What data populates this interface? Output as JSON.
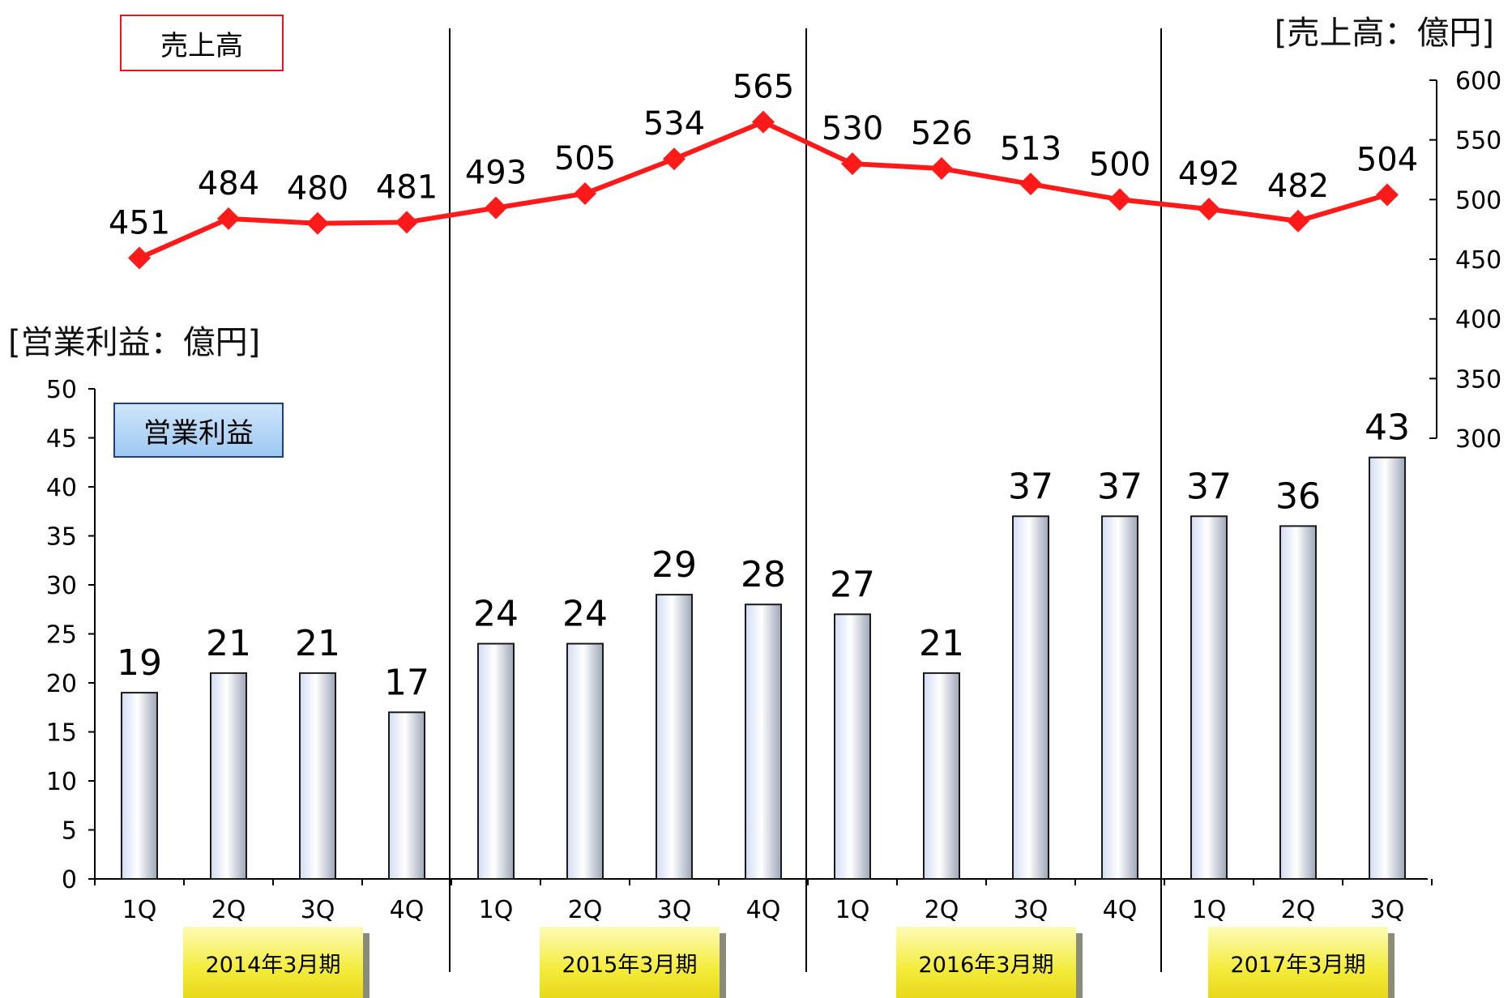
{
  "chart_data": [
    {
      "type": "line",
      "title": "",
      "legend": "売上高",
      "unit_label": "[売上高：億円]",
      "axis": "right",
      "ylim": [
        300,
        600
      ],
      "yticks": [
        300,
        350,
        400,
        450,
        500,
        550,
        600
      ],
      "categories": [
        "1Q",
        "2Q",
        "3Q",
        "4Q",
        "1Q",
        "2Q",
        "3Q",
        "4Q",
        "1Q",
        "2Q",
        "3Q",
        "4Q",
        "1Q",
        "2Q",
        "3Q"
      ],
      "values": [
        451,
        484,
        480,
        481,
        493,
        505,
        534,
        565,
        530,
        526,
        513,
        500,
        492,
        482,
        504
      ],
      "color": "#ff1a1a",
      "marker": "diamond"
    },
    {
      "type": "bar",
      "title": "",
      "legend": "営業利益",
      "unit_label": "[営業利益：億円]",
      "axis": "left",
      "ylim": [
        0,
        50
      ],
      "yticks": [
        0,
        5,
        10,
        15,
        20,
        25,
        30,
        35,
        40,
        45,
        50
      ],
      "categories": [
        "1Q",
        "2Q",
        "3Q",
        "4Q",
        "1Q",
        "2Q",
        "3Q",
        "4Q",
        "1Q",
        "2Q",
        "3Q",
        "4Q",
        "1Q",
        "2Q",
        "3Q"
      ],
      "values": [
        19,
        21,
        21,
        17,
        24,
        24,
        29,
        28,
        27,
        21,
        37,
        37,
        37,
        36,
        43
      ],
      "color": "#e6e9f4"
    }
  ],
  "periods": [
    {
      "label": "2014年3月期",
      "quarters": 4
    },
    {
      "label": "2015年3月期",
      "quarters": 4
    },
    {
      "label": "2016年3月期",
      "quarters": 4
    },
    {
      "label": "2017年3月期",
      "quarters": 3
    }
  ]
}
